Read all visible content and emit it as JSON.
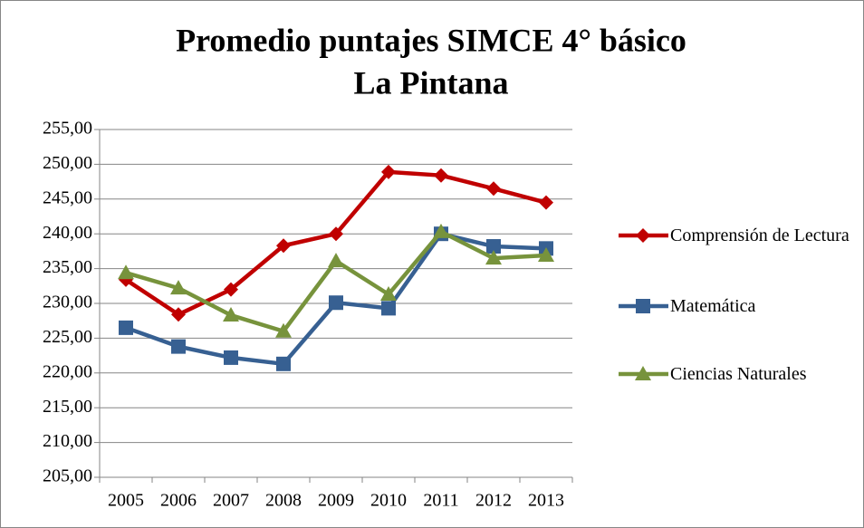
{
  "chart_data": {
    "type": "line",
    "title": [
      "Promedio puntajes SIMCE 4° básico",
      "La Pintana"
    ],
    "categories": [
      "2005",
      "2006",
      "2007",
      "2008",
      "2009",
      "2010",
      "2011",
      "2012",
      "2013"
    ],
    "series": [
      {
        "name": "Comprensión de Lectura",
        "color": "#c00000",
        "marker": "diamond",
        "values": [
          233.4,
          228.4,
          232.0,
          238.3,
          240.0,
          248.9,
          248.4,
          246.5,
          244.5
        ]
      },
      {
        "name": "Matemática",
        "color": "#376092",
        "marker": "square",
        "values": [
          226.5,
          223.8,
          222.2,
          221.3,
          230.1,
          229.3,
          240.0,
          238.2,
          237.9
        ]
      },
      {
        "name": "Ciencias Naturales",
        "color": "#77933c",
        "marker": "triangle",
        "values": [
          234.4,
          232.2,
          228.3,
          226.0,
          236.1,
          231.3,
          240.3,
          236.5,
          236.9
        ]
      }
    ],
    "ylim": [
      205,
      255
    ],
    "yticks": [
      {
        "value": 205,
        "label": "205,00"
      },
      {
        "value": 210,
        "label": "210,00"
      },
      {
        "value": 215,
        "label": "215,00"
      },
      {
        "value": 220,
        "label": "220,00"
      },
      {
        "value": 225,
        "label": "225,00"
      },
      {
        "value": 230,
        "label": "230,00"
      },
      {
        "value": 235,
        "label": "235,00"
      },
      {
        "value": 240,
        "label": "240,00"
      },
      {
        "value": 245,
        "label": "245,00"
      },
      {
        "value": 250,
        "label": "250,00"
      },
      {
        "value": 255,
        "label": "255,00"
      }
    ],
    "grid": true,
    "legend": "right"
  }
}
